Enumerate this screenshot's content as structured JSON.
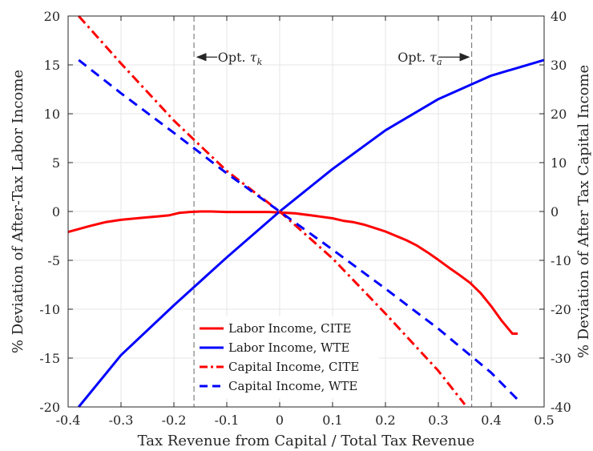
{
  "chart_data": {
    "type": "line",
    "xlabel": "Tax Revenue from Capital / Total Tax Revenue",
    "ylabel_left": "% Deviation of After-Tax Labor Income",
    "ylabel_right": "% Deviation of After Tax Capital Income",
    "xlim": [
      -0.4,
      0.5
    ],
    "ylim_left": [
      -20,
      20
    ],
    "ylim_right": [
      -40,
      40
    ],
    "xticks": [
      -0.4,
      -0.3,
      -0.2,
      -0.1,
      0,
      0.1,
      0.2,
      0.3,
      0.4,
      0.5
    ],
    "xtick_labels": [
      "-0.4",
      "-0.3",
      "-0.2",
      "-0.1",
      "0",
      "0.1",
      "0.2",
      "0.3",
      "0.4",
      "0.5"
    ],
    "yticks_left": [
      -20,
      -15,
      -10,
      -5,
      0,
      5,
      10,
      15,
      20
    ],
    "ytick_labels_left": [
      "-20",
      "-15",
      "-10",
      "-5",
      "0",
      "5",
      "10",
      "15",
      "20"
    ],
    "yticks_right": [
      -40,
      -30,
      -20,
      -10,
      0,
      10,
      20,
      30,
      40
    ],
    "ytick_labels_right": [
      "-40",
      "-30",
      "-20",
      "-10",
      "0",
      "10",
      "20",
      "30",
      "40"
    ],
    "grid": true,
    "legend_position": "lower-center",
    "vlines": [
      {
        "x": -0.162,
        "color": "#808080",
        "style": "dashed"
      },
      {
        "x": 0.363,
        "color": "#808080",
        "style": "dashed"
      }
    ],
    "annotations": [
      {
        "text_main": "Opt.",
        "symbol": "τ",
        "subscript": "k",
        "text_x": -0.075,
        "text_y": 15.8,
        "arrow_from": -0.118,
        "arrow_to": -0.156,
        "arrow_y": 15.8
      },
      {
        "text_main": "Opt.",
        "symbol": "τ",
        "subscript": "a",
        "text_x": 0.265,
        "text_y": 15.8,
        "arrow_from": 0.3,
        "arrow_to": 0.358,
        "arrow_y": 15.8
      }
    ],
    "series": [
      {
        "name": "Labor Income, CITE",
        "axis": "left",
        "color": "#ff0000",
        "style": "solid",
        "x": [
          -0.4,
          -0.36,
          -0.33,
          -0.3,
          -0.26,
          -0.23,
          -0.21,
          -0.19,
          -0.17,
          -0.15,
          -0.13,
          -0.1,
          -0.07,
          -0.04,
          -0.02,
          0,
          0.03,
          0.06,
          0.08,
          0.1,
          0.12,
          0.14,
          0.16,
          0.18,
          0.2,
          0.22,
          0.24,
          0.26,
          0.28,
          0.3,
          0.32,
          0.34,
          0.36,
          0.38,
          0.4,
          0.42,
          0.44,
          0.45
        ],
        "y": [
          -2.1,
          -1.5,
          -1.1,
          -0.85,
          -0.65,
          -0.5,
          -0.4,
          -0.15,
          -0.05,
          0,
          0,
          -0.05,
          -0.05,
          -0.05,
          -0.05,
          -0.1,
          -0.2,
          -0.4,
          -0.55,
          -0.7,
          -0.95,
          -1.1,
          -1.35,
          -1.7,
          -2.05,
          -2.5,
          -2.95,
          -3.5,
          -4.2,
          -4.95,
          -5.75,
          -6.5,
          -7.3,
          -8.35,
          -9.7,
          -11.2,
          -12.5,
          -12.5
        ]
      },
      {
        "name": "Labor Income, WTE",
        "axis": "left",
        "color": "#0000ff",
        "style": "solid",
        "x": [
          -0.38,
          -0.3,
          -0.2,
          -0.1,
          0,
          0.1,
          0.2,
          0.3,
          0.4,
          0.5
        ],
        "y": [
          -20,
          -14.7,
          -9.6,
          -4.7,
          0,
          4.35,
          8.3,
          11.5,
          13.9,
          15.5
        ]
      },
      {
        "name": "Capital Income, CITE",
        "axis": "right",
        "color": "#ff0000",
        "style": "dashdot",
        "x": [
          -0.38,
          -0.3,
          -0.2,
          -0.1,
          0,
          0.1,
          0.2,
          0.3,
          0.35
        ],
        "y": [
          40,
          30.3,
          18.6,
          8.3,
          0,
          -9.6,
          -20.9,
          -32.6,
          -39.5
        ]
      },
      {
        "name": "Capital Income, WTE",
        "axis": "right",
        "color": "#0000ff",
        "style": "dashed",
        "x": [
          -0.38,
          -0.3,
          -0.2,
          -0.1,
          0,
          0.1,
          0.2,
          0.3,
          0.4,
          0.45
        ],
        "y": [
          31,
          24.2,
          16.1,
          7.8,
          0,
          -7.8,
          -15.8,
          -24,
          -33,
          -38.5
        ]
      }
    ]
  }
}
